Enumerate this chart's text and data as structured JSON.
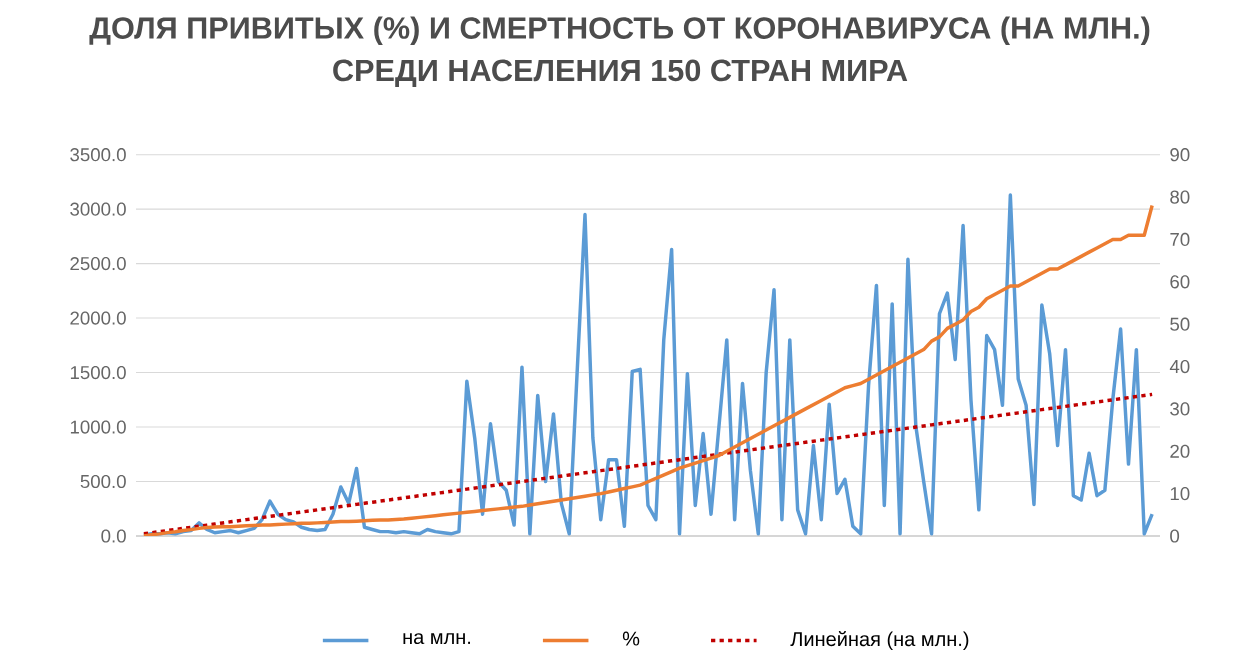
{
  "chart_data": {
    "type": "line",
    "title": "ДОЛЯ ПРИВИТЫХ (%) И СМЕРТНОСТЬ ОТ КОРОНАВИРУСА (НА МЛН.)",
    "subtitle": "СРЕДИ НАСЕЛЕНИЯ 150 СТРАН МИРА",
    "categories": [
      null,
      null,
      null,
      null,
      null,
      null,
      null,
      null,
      null,
      null,
      null,
      null,
      null,
      null,
      null,
      null,
      null,
      null,
      null,
      null,
      null,
      null,
      null,
      null,
      null,
      null,
      null,
      null,
      null,
      null,
      null,
      null,
      null,
      null,
      null,
      null,
      null,
      null,
      null,
      null,
      null,
      null,
      null,
      null,
      null,
      null,
      null,
      null,
      null,
      null,
      null,
      null,
      null,
      null,
      null,
      null,
      null,
      null,
      null,
      null,
      null,
      null,
      null,
      null,
      null,
      null,
      null,
      null,
      null,
      null,
      null,
      null,
      null,
      null,
      null,
      null,
      null,
      null,
      null,
      null,
      null,
      null,
      null,
      null,
      null,
      null,
      null,
      null,
      null,
      null,
      null,
      null,
      null,
      null,
      null,
      null,
      null,
      null,
      null,
      null,
      null,
      null,
      null,
      null,
      null,
      null,
      null,
      null,
      null,
      null,
      null,
      null,
      null,
      null,
      null,
      null,
      null,
      null,
      null,
      null,
      null,
      null,
      null,
      null,
      null,
      null,
      null,
      null,
      null
    ],
    "series": [
      {
        "name": "на млн.",
        "color": "#5b9bd5",
        "line_style": "solid",
        "values": [
          10,
          20,
          20,
          30,
          20,
          40,
          50,
          120,
          60,
          30,
          40,
          50,
          30,
          50,
          70,
          150,
          320,
          200,
          150,
          130,
          80,
          60,
          50,
          60,
          200,
          450,
          300,
          620,
          80,
          60,
          40,
          40,
          30,
          40,
          30,
          20,
          60,
          40,
          30,
          20,
          40,
          1420,
          900,
          200,
          1030,
          500,
          420,
          100,
          1550,
          20,
          1290,
          500,
          1120,
          300,
          20,
          1500,
          2950,
          900,
          150,
          700,
          700,
          90,
          1510,
          1530,
          280,
          150,
          1800,
          2630,
          20,
          1490,
          280,
          940,
          200,
          1000,
          1800,
          150,
          1400,
          600,
          20,
          1500,
          2260,
          150,
          1800,
          240,
          20,
          830,
          150,
          1210,
          390,
          520,
          90,
          20,
          1380,
          2300,
          280,
          2130,
          20,
          2540,
          1010,
          500,
          20,
          2040,
          2230,
          1620,
          2850,
          1250,
          240,
          1840,
          1710,
          1200,
          3130,
          1440,
          1200,
          290,
          2120,
          1670,
          830,
          1710,
          370,
          330,
          760,
          370,
          420,
          1250,
          1900,
          660,
          1710,
          20,
          200
        ]
      },
      {
        "name": "%",
        "color": "#ed7d31",
        "line_style": "solid",
        "axis": "y2",
        "values": [
          0,
          0.3,
          0.5,
          0.8,
          1,
          1.3,
          1.5,
          1.8,
          2,
          2.1,
          2.2,
          2.2,
          2.3,
          2.4,
          2.5,
          2.6,
          2.6,
          2.7,
          2.8,
          2.9,
          3,
          3,
          3.1,
          3.2,
          3.3,
          3.4,
          3.4,
          3.5,
          3.6,
          3.7,
          3.8,
          3.8,
          3.9,
          4,
          4.2,
          4.4,
          4.6,
          4.8,
          5,
          5.2,
          5.4,
          5.6,
          5.8,
          6,
          6.2,
          6.4,
          6.6,
          6.8,
          7,
          7.3,
          7.6,
          7.9,
          8.2,
          8.5,
          8.8,
          9.1,
          9.4,
          9.7,
          10,
          10.4,
          10.8,
          11.2,
          11.6,
          12,
          12.8,
          13.6,
          14.4,
          15.2,
          16,
          16.6,
          17.2,
          17.8,
          18.4,
          19,
          20,
          21,
          22,
          23,
          24,
          25,
          26,
          27,
          28,
          29,
          30,
          31,
          32,
          33,
          34,
          35,
          35.5,
          36,
          37,
          38,
          39,
          40,
          41,
          42,
          43,
          44,
          46,
          47,
          49,
          50,
          51,
          53,
          54,
          56,
          57,
          58,
          59,
          59,
          60,
          61,
          62,
          63,
          63,
          64,
          65,
          66,
          67,
          68,
          69,
          70,
          70,
          71,
          71,
          71,
          78
        ]
      },
      {
        "name": "Линейная (на млн.)",
        "color": "#c00000",
        "line_style": "dotted",
        "values": [
          20,
          30,
          40,
          50,
          60,
          70,
          80,
          90,
          100,
          110,
          120,
          130,
          140,
          150,
          160,
          170,
          180,
          190,
          200,
          210,
          220,
          230,
          240,
          250,
          260,
          270,
          280,
          290,
          300,
          310,
          320,
          330,
          340,
          350,
          360,
          370,
          380,
          390,
          400,
          410,
          420,
          430,
          440,
          450,
          460,
          470,
          480,
          490,
          500,
          510,
          520,
          530,
          540,
          550,
          560,
          570,
          580,
          590,
          600,
          610,
          620,
          630,
          640,
          650,
          660,
          670,
          680,
          690,
          700,
          710,
          720,
          730,
          740,
          750,
          760,
          770,
          780,
          790,
          800,
          810,
          820,
          830,
          840,
          850,
          860,
          870,
          880,
          890,
          900,
          910,
          920,
          930,
          940,
          950,
          960,
          970,
          980,
          990,
          1000,
          1010,
          1020,
          1030,
          1040,
          1050,
          1060,
          1070,
          1080,
          1090,
          1100,
          1110,
          1120,
          1130,
          1140,
          1150,
          1160,
          1170,
          1180,
          1190,
          1200,
          1210,
          1220,
          1230,
          1240,
          1250,
          1260,
          1270,
          1280,
          1290,
          1300
        ]
      }
    ],
    "ylim": [
      0,
      3500
    ],
    "yticks": [
      {
        "value": 0,
        "label": "0.0"
      },
      {
        "value": 500,
        "label": "500.0"
      },
      {
        "value": 1000,
        "label": "1000.0"
      },
      {
        "value": 1500,
        "label": "1500.0"
      },
      {
        "value": 2000,
        "label": "2000.0"
      },
      {
        "value": 2500,
        "label": "2500.0"
      },
      {
        "value": 3000,
        "label": "3000.0"
      },
      {
        "value": 3500,
        "label": "3500.0"
      }
    ],
    "y2lim": [
      0,
      90
    ],
    "y2ticks": [
      0,
      10,
      20,
      30,
      40,
      50,
      60,
      70,
      80,
      90
    ],
    "grid": "y",
    "legend": "bottom",
    "marker": "none"
  }
}
